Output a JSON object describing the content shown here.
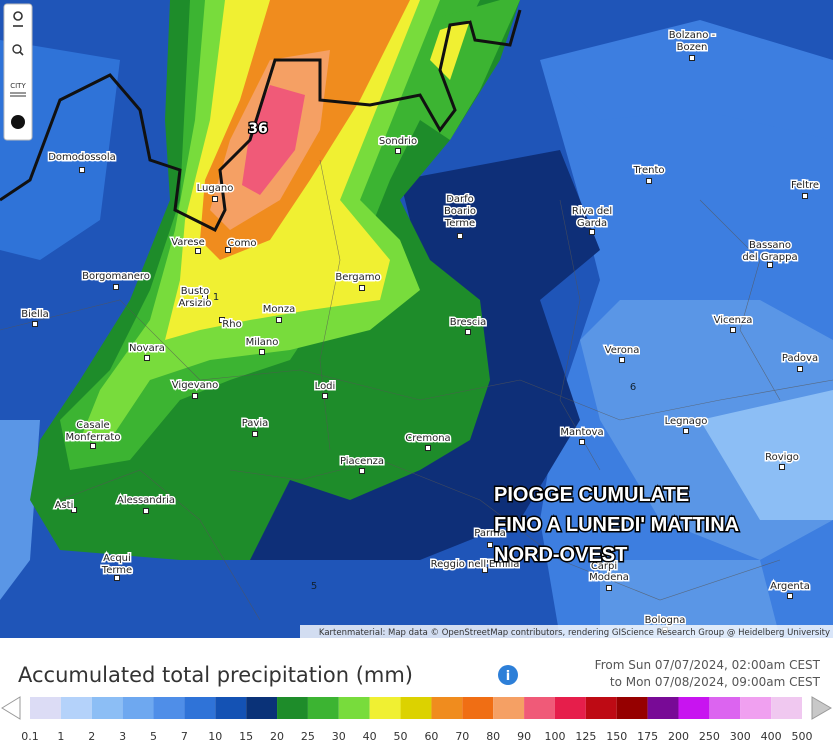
{
  "map": {
    "cities": [
      {
        "lines": [
          "Bolzano -",
          "Bozen"
        ]
      },
      {
        "lines": [
          "Domodossola"
        ]
      },
      {
        "lines": [
          "Sondrio"
        ]
      },
      {
        "lines": [
          "Trento"
        ]
      },
      {
        "lines": [
          "Feltre"
        ]
      },
      {
        "lines": [
          "Lugano"
        ]
      },
      {
        "lines": [
          "Darfo",
          "Boario",
          "Terme"
        ]
      },
      {
        "lines": [
          "Riva del",
          "Garda"
        ]
      },
      {
        "lines": [
          "Varese"
        ]
      },
      {
        "lines": [
          "Como"
        ]
      },
      {
        "lines": [
          "Bassano",
          "del Grappa"
        ]
      },
      {
        "lines": [
          "Borgomanero"
        ]
      },
      {
        "lines": [
          "Bergamo"
        ]
      },
      {
        "lines": [
          "Busto",
          "Arsizio"
        ]
      },
      {
        "lines": [
          "Biella"
        ]
      },
      {
        "lines": [
          "Monza"
        ]
      },
      {
        "lines": [
          "Brescia"
        ]
      },
      {
        "lines": [
          "Vicenza"
        ]
      },
      {
        "lines": [
          "Rho"
        ]
      },
      {
        "lines": [
          "Milano"
        ]
      },
      {
        "lines": [
          "Novara"
        ]
      },
      {
        "lines": [
          "Verona"
        ]
      },
      {
        "lines": [
          "Padova"
        ]
      },
      {
        "lines": [
          "Vigevano"
        ]
      },
      {
        "lines": [
          "Lodi"
        ]
      },
      {
        "lines": [
          "Legnago"
        ]
      },
      {
        "lines": [
          "Pavia"
        ]
      },
      {
        "lines": [
          "Mantova"
        ]
      },
      {
        "lines": [
          "Casale",
          "Monferrato"
        ]
      },
      {
        "lines": [
          "Cremona"
        ]
      },
      {
        "lines": [
          "Rovigo"
        ]
      },
      {
        "lines": [
          "Piacenza"
        ]
      },
      {
        "lines": [
          "Alessandria"
        ]
      },
      {
        "lines": [
          "Asti"
        ]
      },
      {
        "lines": [
          "Parma"
        ]
      },
      {
        "lines": [
          "Acqui",
          "Terme"
        ]
      },
      {
        "lines": [
          "Reggio nell'Emilia"
        ]
      },
      {
        "lines": [
          "Carpi"
        ]
      },
      {
        "lines": [
          "Modena"
        ]
      },
      {
        "lines": [
          "Argenta"
        ]
      },
      {
        "lines": [
          "Bologna"
        ]
      }
    ],
    "contour_labels": [
      "36",
      "6",
      "5",
      "1"
    ],
    "overlay": [
      "PIOGGE CUMULATE",
      "FINO A LUNEDI' MATTINA",
      "NORD-OVEST"
    ],
    "attribution": "Kartenmaterial: Map data © OpenStreetMap contributors, rendering GIScience Research Group @ Heidelberg University",
    "toolbar": {
      "city": "CITY"
    }
  },
  "legend": {
    "title": "Accumulated total precipitation (mm)",
    "from": "From Sun 07/07/2024, 02:00am CEST",
    "to": "to Mon 07/08/2024, 09:00am CEST",
    "ticks": [
      "0.1",
      "1",
      "2",
      "3",
      "5",
      "7",
      "10",
      "15",
      "20",
      "25",
      "30",
      "40",
      "50",
      "60",
      "70",
      "80",
      "90",
      "100",
      "125",
      "150",
      "175",
      "200",
      "250",
      "300",
      "400",
      "500"
    ],
    "colors": [
      "#dcdcf5",
      "#b4d2fa",
      "#8cbef5",
      "#6ea8f0",
      "#4f8ee8",
      "#2f73d8",
      "#1452b4",
      "#0a3278",
      "#1e8c2a",
      "#3cb432",
      "#78dc3c",
      "#f0f032",
      "#dcd200",
      "#f08c1e",
      "#f06e14",
      "#f5a064",
      "#f05a78",
      "#e61e4b",
      "#be0a14",
      "#960000",
      "#780a96",
      "#c814f0",
      "#dc64f0",
      "#f0a0f0",
      "#f0c8f0"
    ]
  }
}
